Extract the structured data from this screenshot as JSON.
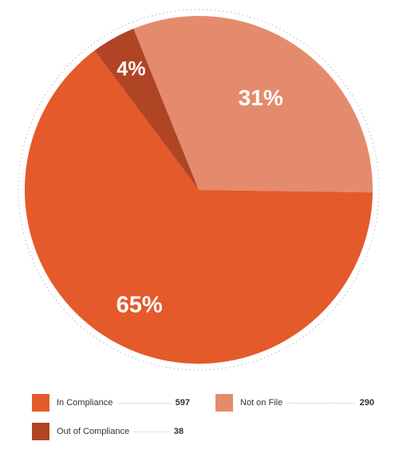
{
  "chart_data": {
    "type": "pie",
    "slices": [
      {
        "name": "Not on File",
        "value": 290,
        "percent_label": "31%",
        "color": "#e58b6d"
      },
      {
        "name": "In Compliance",
        "value": 597,
        "percent_label": "65%",
        "color": "#e45a2b"
      },
      {
        "name": "Out of Compliance",
        "value": 38,
        "percent_label": "4%",
        "color": "#b04526"
      }
    ],
    "start_angle_deg": -22,
    "outline": "dotted",
    "legend_position": "bottom"
  }
}
